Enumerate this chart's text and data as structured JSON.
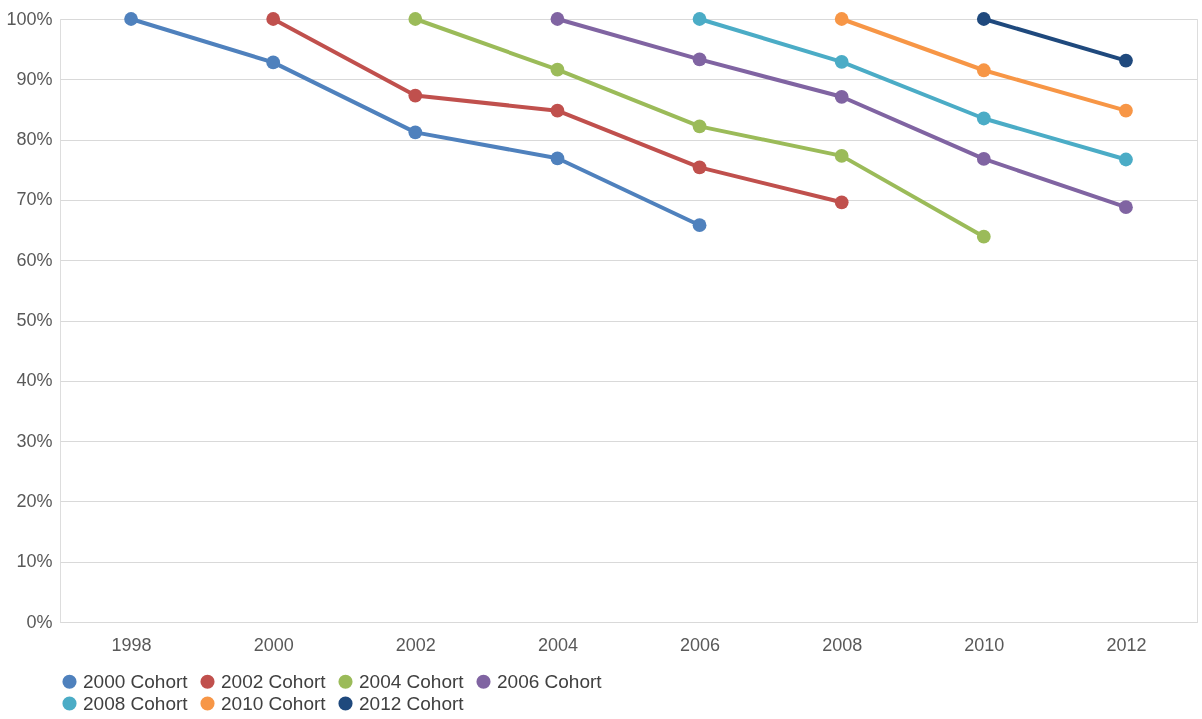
{
  "chart_data": {
    "type": "line",
    "categories": [
      "1998",
      "2000",
      "2002",
      "2004",
      "2006",
      "2008",
      "2010",
      "2012"
    ],
    "series": [
      {
        "name": "2000 Cohort",
        "color": "#4f81bd",
        "values": [
          100,
          92.8,
          81.2,
          76.9,
          65.8,
          null,
          null,
          null
        ]
      },
      {
        "name": "2002 Cohort",
        "color": "#c0504d",
        "values": [
          null,
          100,
          87.3,
          84.8,
          75.4,
          69.6,
          null,
          null
        ]
      },
      {
        "name": "2004 Cohort",
        "color": "#9bbb59",
        "values": [
          null,
          null,
          100,
          91.6,
          82.2,
          77.3,
          63.9,
          null
        ]
      },
      {
        "name": "2006 Cohort",
        "color": "#8064a2",
        "values": [
          null,
          null,
          null,
          100,
          93.3,
          87.1,
          76.8,
          68.8
        ]
      },
      {
        "name": "2008 Cohort",
        "color": "#4bacc6",
        "values": [
          null,
          null,
          null,
          null,
          100,
          92.9,
          83.5,
          76.7
        ]
      },
      {
        "name": "2010 Cohort",
        "color": "#f79646",
        "values": [
          null,
          null,
          null,
          null,
          null,
          100,
          91.5,
          84.8
        ]
      },
      {
        "name": "2012 Cohort",
        "color": "#1f497d",
        "values": [
          null,
          null,
          null,
          null,
          null,
          null,
          100,
          93.1
        ]
      }
    ],
    "ylim": [
      0,
      100
    ],
    "yticks": [
      {
        "value": 0,
        "label": "0%"
      },
      {
        "value": 10,
        "label": "10%"
      },
      {
        "value": 20,
        "label": "20%"
      },
      {
        "value": 30,
        "label": "30%"
      },
      {
        "value": 40,
        "label": "40%"
      },
      {
        "value": 50,
        "label": "50%"
      },
      {
        "value": 60,
        "label": "60%"
      },
      {
        "value": 70,
        "label": "70%"
      },
      {
        "value": 80,
        "label": "80%"
      },
      {
        "value": 90,
        "label": "90%"
      },
      {
        "value": 100,
        "label": "100%"
      }
    ],
    "grid": "y",
    "legend": "bottom",
    "marker": "circle",
    "line_style": "solid"
  }
}
